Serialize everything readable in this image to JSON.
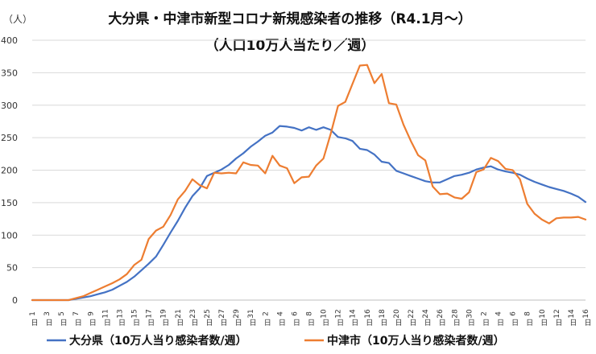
{
  "chart_data": {
    "type": "line",
    "title": "大分県・中津市新型コロナ新規感染者の推移（R4.1月～）",
    "subtitle": "（人口10万人当たり／週）",
    "ylabel": "（人）",
    "xlabel": "",
    "ylim": [
      0,
      400
    ],
    "yticks": [
      0,
      50,
      100,
      150,
      200,
      250,
      300,
      350,
      400
    ],
    "grid": true,
    "legend_position": "bottom",
    "x_tick_unit": "日",
    "x_day_labels": [
      1,
      3,
      5,
      7,
      9,
      11,
      13,
      15,
      17,
      19,
      21,
      23,
      25,
      27,
      29,
      31,
      2,
      4,
      6,
      8,
      10,
      12,
      14,
      16,
      18,
      20,
      22,
      24,
      26,
      28,
      30,
      2,
      4,
      6,
      8,
      10,
      12,
      14,
      16
    ],
    "x_tick_step": 2,
    "series": [
      {
        "name": "大分県（10万人当り感染者数/週）",
        "color": "#4472C4",
        "values": [
          0,
          0,
          0,
          0,
          0,
          0,
          2,
          4,
          6,
          9,
          12,
          16,
          22,
          28,
          36,
          46,
          56,
          67,
          85,
          104,
          122,
          142,
          160,
          172,
          191,
          196,
          201,
          208,
          218,
          226,
          236,
          244,
          253,
          258,
          268,
          267,
          265,
          261,
          266,
          262,
          266,
          262,
          251,
          249,
          245,
          233,
          231,
          224,
          213,
          211,
          199,
          195,
          191,
          187,
          183,
          181,
          181,
          186,
          191,
          193,
          196,
          201,
          204,
          206,
          201,
          198,
          196,
          193,
          187,
          182,
          178,
          174,
          171,
          168,
          164,
          159,
          151
        ]
      },
      {
        "name": "中津市（10万人当り感染者数/週）",
        "color": "#ED7D31",
        "values": [
          0,
          0,
          0,
          0,
          0,
          0,
          3,
          6,
          11,
          16,
          21,
          26,
          32,
          40,
          54,
          62,
          94,
          107,
          113,
          131,
          155,
          168,
          186,
          177,
          172,
          196,
          195,
          196,
          195,
          212,
          208,
          207,
          195,
          222,
          207,
          203,
          180,
          189,
          190,
          207,
          218,
          256,
          299,
          305,
          333,
          361,
          362,
          334,
          348,
          303,
          301,
          270,
          245,
          223,
          215,
          175,
          163,
          164,
          158,
          156,
          166,
          197,
          201,
          219,
          214,
          202,
          200,
          186,
          148,
          133,
          124,
          118,
          126,
          127,
          127,
          128,
          124
        ]
      }
    ]
  }
}
